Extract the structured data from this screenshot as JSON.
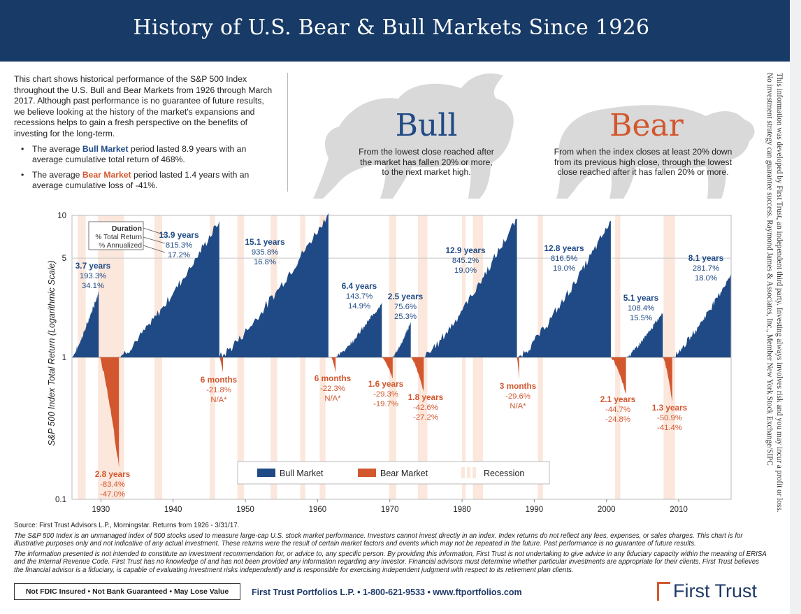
{
  "title": "History of U.S. Bear & Bull Markets Since 1926",
  "intro": {
    "paragraph": "This chart shows historical performance of the S&P 500 Index throughout the U.S. Bull and Bear Markets from 1926 through March 2017. Although past performance is no guarantee of future results, we believe looking at the history of the market's expansions and recessions helps to gain a fresh perspective on the benefits of investing for the long-term.",
    "bullet1_pre": "The average ",
    "bullet1_key": "Bull Market",
    "bullet1_post": " period lasted 8.9 years with an average cumulative total return of 468%.",
    "bullet2_pre": "The average ",
    "bullet2_key": "Bear Market",
    "bullet2_post": " period lasted 1.4 years with an average cumulative loss of -41%."
  },
  "bull": {
    "word": "Bull",
    "definition": "From the lowest close reached after the market has fallen 20% or more, to the next market high."
  },
  "bear": {
    "word": "Bear",
    "definition": "From when the index closes at least 20% down from its previous high close, through the lowest close reached after it has fallen 20% or more."
  },
  "side_note": "This information was developed by First Trust, an independent third party. Investing always involves risk and you may incur a profit or loss. No investment strategy can guarantee success. Raymond James & Associates, Inc., Member New York Stock Exchange/SIPC",
  "colors": {
    "header": "#173a66",
    "bull": "#1f4a85",
    "bear": "#d2572f",
    "recession": "#fbe7dc",
    "animal": "#d9d9d9"
  },
  "chart_data": {
    "type": "area",
    "ylabel": "S&P 500 Index Total Return (Logarithmic Scale)",
    "y_scale": "log",
    "ylim": [
      0.1,
      10
    ],
    "y_ticks": [
      "10",
      "5",
      "1",
      "0.1"
    ],
    "y_tick_values": [
      10,
      5,
      1,
      0.1
    ],
    "xlim": [
      1926,
      2017.25
    ],
    "x_ticks": [
      "1930",
      "1940",
      "1950",
      "1960",
      "1970",
      "1980",
      "1990",
      "2000",
      "2010"
    ],
    "x_tick_values": [
      1930,
      1940,
      1950,
      1960,
      1970,
      1980,
      1990,
      2000,
      2010
    ],
    "grid": "horizontal",
    "legend": {
      "position": "bottom-center",
      "bull": "Bull Market",
      "bear": "Bear Market",
      "recession": "Recession"
    },
    "key_box": {
      "duration": "Duration",
      "total": "% Total Return",
      "annualized": "% Annualized"
    },
    "recessions": [
      [
        1926.8,
        1927.9
      ],
      [
        1929.6,
        1933.2
      ],
      [
        1937.4,
        1938.5
      ],
      [
        1945.1,
        1945.8
      ],
      [
        1948.9,
        1949.8
      ],
      [
        1953.5,
        1954.4
      ],
      [
        1957.6,
        1958.3
      ],
      [
        1960.3,
        1961.1
      ],
      [
        1969.9,
        1970.9
      ],
      [
        1973.9,
        1975.2
      ],
      [
        1980.0,
        1980.5
      ],
      [
        1981.5,
        1982.9
      ],
      [
        1990.5,
        1991.2
      ],
      [
        2001.2,
        2001.9
      ],
      [
        2007.9,
        2009.5
      ]
    ],
    "bull_markets": [
      {
        "start": 1926.0,
        "end": 1929.7,
        "peak": 2.93,
        "duration": "3.7 years",
        "total": "193.3%",
        "annual": "34.1%"
      },
      {
        "start": 1932.5,
        "end": 1946.4,
        "peak": 9.15,
        "duration": "13.9 years",
        "total": "815.3%",
        "annual": "17.2%"
      },
      {
        "start": 1946.4,
        "end": 1961.5,
        "peak": 10.36,
        "duration": "15.1 years",
        "total": "935.8%",
        "annual": "16.8%"
      },
      {
        "start": 1962.5,
        "end": 1968.9,
        "peak": 2.44,
        "duration": "6.4 years",
        "total": "143.7%",
        "annual": "14.9%"
      },
      {
        "start": 1970.4,
        "end": 1972.9,
        "peak": 1.76,
        "duration": "2.5 years",
        "total": "75.6%",
        "annual": "25.3%"
      },
      {
        "start": 1974.7,
        "end": 1987.6,
        "peak": 9.45,
        "duration": "12.9 years",
        "total": "845.2%",
        "annual": "19.0%"
      },
      {
        "start": 1987.8,
        "end": 2000.6,
        "peak": 9.17,
        "duration": "12.8 years",
        "total": "816.5%",
        "annual": "19.0%"
      },
      {
        "start": 2002.7,
        "end": 2007.8,
        "peak": 2.08,
        "duration": "5.1 years",
        "total": "108.4%",
        "annual": "15.5%"
      },
      {
        "start": 2009.1,
        "end": 2017.2,
        "peak": 3.82,
        "duration": "8.1 years",
        "total": "281.7%",
        "annual": "18.0%"
      }
    ],
    "bear_markets": [
      {
        "start": 1929.7,
        "end": 1932.5,
        "trough": 0.166,
        "duration": "2.8 years",
        "total": "-83.4%",
        "annual": "-47.0%"
      },
      {
        "start": 1946.4,
        "end": 1946.9,
        "trough": 0.78,
        "duration": "6 months",
        "total": "-21.8%",
        "annual": "N/A*"
      },
      {
        "start": 1961.9,
        "end": 1962.5,
        "trough": 0.78,
        "duration": "6 months",
        "total": "-22.3%",
        "annual": "N/A*"
      },
      {
        "start": 1968.9,
        "end": 1970.4,
        "trough": 0.71,
        "duration": "1.6 years",
        "total": "-29.3%",
        "annual": "-19.7%"
      },
      {
        "start": 1972.9,
        "end": 1974.7,
        "trough": 0.57,
        "duration": "1.8 years",
        "total": "-42.6%",
        "annual": "-27.2%"
      },
      {
        "start": 1987.6,
        "end": 1987.9,
        "trough": 0.7,
        "duration": "3 months",
        "total": "-29.6%",
        "annual": "N/A*"
      },
      {
        "start": 2000.6,
        "end": 2002.7,
        "trough": 0.55,
        "duration": "2.1 years",
        "total": "-44.7%",
        "annual": "-24.8%"
      },
      {
        "start": 2007.8,
        "end": 2009.1,
        "trough": 0.49,
        "duration": "1.3 years",
        "total": "-50.9%",
        "annual": "-41.4%"
      }
    ]
  },
  "footer": {
    "source": "Source: First Trust Advisors L.P., Morningstar. Returns from 1926 - 3/31/17.",
    "note1": "The S&P 500 Index is an unmanaged index of 500 stocks used to measure large-cap U.S. stock market performance. Investors cannot invest directly in an index. Index returns do not reflect any fees, expenses, or sales charges. This chart is for illustrative purposes only and not indicative of any actual investment. These returns were the result of certain market factors and events which may not be repeated in the future. Past performance is no guarantee of future results.",
    "note2": "The information presented is not intended to constitute an investment recommendation for, or advice to, any specific person. By providing this information, First Trust is not undertaking to give advice in any fiduciary capacity within the meaning of ERISA and the Internal Revenue Code. First Trust has no knowledge of and has not been provided any information regarding any investor. Financial advisors must determine whether particular investments are appropriate for their clients. First Trust believes the financial advisor is a fiduciary, is capable of evaluating investment risks independently and is responsible for exercising independent judgment with respect to its retirement plan clients.",
    "disclaimer": "Not FDIC Insured • Not Bank Guaranteed • May Lose Value",
    "contact": "First Trust Portfolios L.P. • 1-800-621-9533 • www.ftportfolios.com",
    "logo": "First Trust"
  }
}
